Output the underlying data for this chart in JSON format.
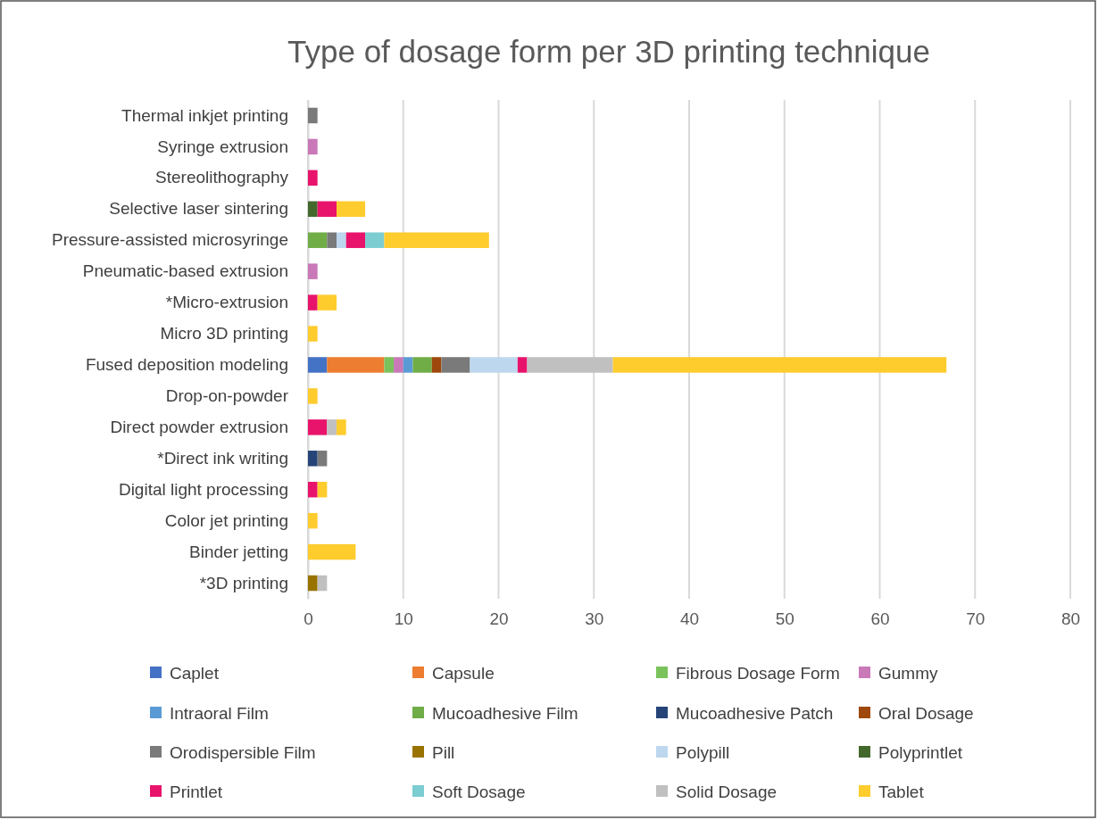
{
  "chart_data": {
    "type": "bar",
    "orientation": "horizontal",
    "stacked": true,
    "title": "Type of dosage form per 3D printing technique",
    "categories": [
      "Thermal inkjet printing",
      "Syringe extrusion",
      "Stereolithography",
      "Selective laser sintering",
      "Pressure-assisted microsyringe",
      "Pneumatic-based extrusion",
      "*Micro-extrusion",
      "Micro 3D printing",
      "Fused deposition modeling",
      "Drop-on-powder",
      "Direct powder extrusion",
      "*Direct ink writing",
      "Digital light processing",
      "Color jet printing",
      "Binder jetting",
      "*3D printing"
    ],
    "xlim": [
      0,
      80
    ],
    "xticks": [
      0,
      10,
      20,
      30,
      40,
      50,
      60,
      70,
      80
    ],
    "grid": "x",
    "legend": "bottom",
    "series": [
      {
        "name": "Caplet",
        "color": "#4472c4",
        "values": [
          null,
          null,
          null,
          null,
          null,
          null,
          null,
          null,
          2,
          null,
          null,
          null,
          null,
          null,
          null,
          null
        ]
      },
      {
        "name": "Capsule",
        "color": "#ed7d31",
        "values": [
          null,
          null,
          null,
          null,
          null,
          null,
          null,
          null,
          6,
          null,
          null,
          null,
          null,
          null,
          null,
          null
        ]
      },
      {
        "name": "Fibrous Dosage Form",
        "color": "#7ac25c",
        "values": [
          null,
          null,
          null,
          null,
          null,
          null,
          null,
          null,
          1,
          null,
          null,
          null,
          null,
          null,
          null,
          null
        ]
      },
      {
        "name": "Gummy",
        "color": "#c978b8",
        "values": [
          null,
          1,
          null,
          null,
          null,
          1,
          null,
          null,
          1,
          null,
          null,
          null,
          null,
          null,
          null,
          null
        ]
      },
      {
        "name": "Intraoral Film",
        "color": "#5b9bd5",
        "values": [
          null,
          null,
          null,
          null,
          null,
          null,
          null,
          null,
          1,
          null,
          null,
          null,
          null,
          null,
          null,
          null
        ]
      },
      {
        "name": "Mucoadhesive Film",
        "color": "#70ad47",
        "values": [
          null,
          null,
          null,
          null,
          2,
          null,
          null,
          null,
          2,
          null,
          null,
          null,
          null,
          null,
          null,
          null
        ]
      },
      {
        "name": "Mucoadhesive Patch",
        "color": "#264478",
        "values": [
          null,
          null,
          null,
          null,
          null,
          null,
          null,
          null,
          null,
          null,
          null,
          1,
          null,
          null,
          null,
          null
        ]
      },
      {
        "name": "Oral Dosage",
        "color": "#9e480e",
        "values": [
          null,
          null,
          null,
          null,
          null,
          null,
          null,
          null,
          1,
          null,
          null,
          null,
          null,
          null,
          null,
          null
        ]
      },
      {
        "name": "Orodispersible Film",
        "color": "#7a7a7a",
        "values": [
          1,
          null,
          null,
          null,
          1,
          null,
          null,
          null,
          3,
          null,
          null,
          1,
          null,
          null,
          null,
          null
        ]
      },
      {
        "name": "Pill",
        "color": "#997300",
        "values": [
          null,
          null,
          null,
          null,
          null,
          null,
          null,
          null,
          null,
          null,
          null,
          null,
          null,
          null,
          null,
          1
        ]
      },
      {
        "name": "Polypill",
        "color": "#bdd7ee",
        "values": [
          null,
          null,
          null,
          null,
          1,
          null,
          null,
          null,
          5,
          null,
          null,
          null,
          null,
          null,
          null,
          null
        ]
      },
      {
        "name": "Polyprintlet",
        "color": "#43682b",
        "values": [
          null,
          null,
          null,
          1,
          null,
          null,
          null,
          null,
          null,
          null,
          null,
          null,
          null,
          null,
          null,
          null
        ]
      },
      {
        "name": "Printlet",
        "color": "#e8146c",
        "values": [
          null,
          null,
          1,
          2,
          2,
          null,
          1,
          null,
          1,
          null,
          2,
          null,
          1,
          null,
          null,
          null
        ]
      },
      {
        "name": "Soft Dosage",
        "color": "#7ccdd2",
        "values": [
          null,
          null,
          null,
          null,
          2,
          null,
          null,
          null,
          null,
          null,
          null,
          null,
          null,
          null,
          null,
          null
        ]
      },
      {
        "name": "Solid Dosage",
        "color": "#c0c0c0",
        "values": [
          null,
          null,
          null,
          null,
          null,
          null,
          null,
          null,
          9,
          null,
          1,
          null,
          null,
          null,
          null,
          1
        ]
      },
      {
        "name": "Tablet",
        "color": "#ffcc2e",
        "values": [
          null,
          null,
          null,
          3,
          11,
          null,
          2,
          1,
          35,
          1,
          1,
          null,
          1,
          1,
          5,
          null
        ]
      }
    ]
  }
}
